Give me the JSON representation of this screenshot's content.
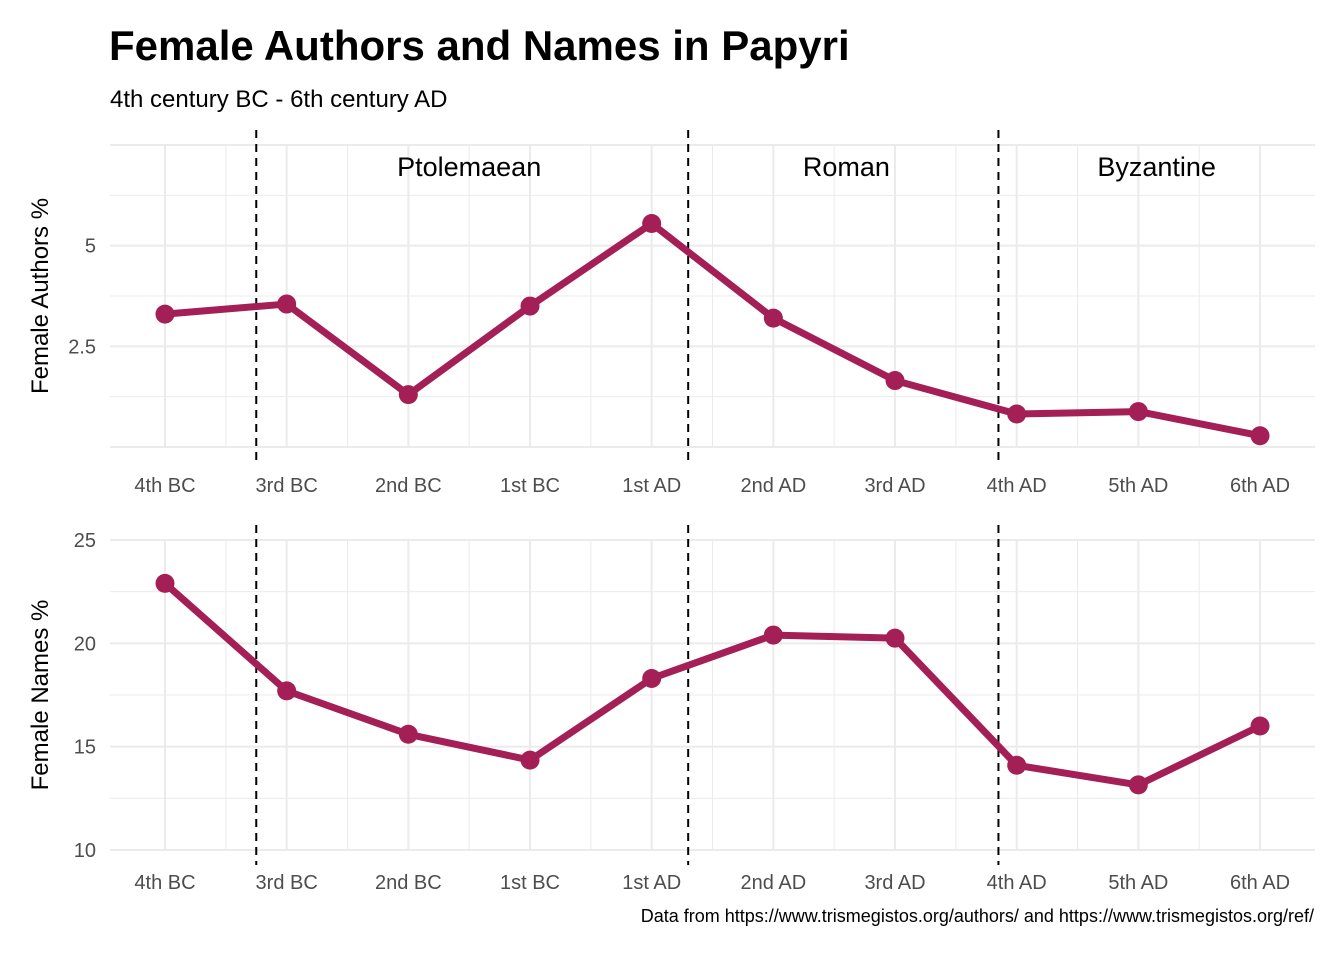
{
  "title": "Female Authors and Names in Papyri",
  "subtitle": "4th century BC - 6th century AD",
  "caption": "Data from https://www.trismegistos.org/authors/ and https://www.trismegistos.org/ref/",
  "colors": {
    "line": "#A31F55",
    "grid": "#EBEBEB",
    "divider": "#000000"
  },
  "chart_data": [
    {
      "type": "line",
      "categories": [
        "4th BC",
        "3rd BC",
        "2nd BC",
        "1st BC",
        "1st AD",
        "2nd AD",
        "3rd AD",
        "4th AD",
        "5th AD",
        "6th AD"
      ],
      "ylabel": "Female Authors %",
      "yticks": [
        2.5,
        5
      ],
      "ylim": [
        0,
        7.5
      ],
      "values": [
        3.3,
        3.55,
        1.3,
        3.5,
        5.55,
        3.2,
        1.65,
        0.82,
        0.88,
        0.28
      ],
      "grid": true,
      "dividers_after_categories": [
        1.75,
        5.3,
        7.85
      ],
      "eras": [
        {
          "label": "Ptolemaean",
          "x": 3.5
        },
        {
          "label": "Roman",
          "x": 6.6
        },
        {
          "label": "Byzantine",
          "x": 9.15
        }
      ]
    },
    {
      "type": "line",
      "categories": [
        "4th BC",
        "3rd BC",
        "2nd BC",
        "1st BC",
        "1st AD",
        "2nd AD",
        "3rd AD",
        "4th AD",
        "5th AD",
        "6th AD"
      ],
      "ylabel": "Female Names %",
      "yticks": [
        10,
        15,
        20,
        25
      ],
      "ylim": [
        10,
        25
      ],
      "values": [
        22.9,
        17.7,
        15.6,
        14.35,
        18.3,
        20.4,
        20.25,
        14.1,
        13.15,
        16.0
      ],
      "grid": true,
      "dividers_after_categories": [
        1.75,
        5.3,
        7.85
      ]
    }
  ]
}
